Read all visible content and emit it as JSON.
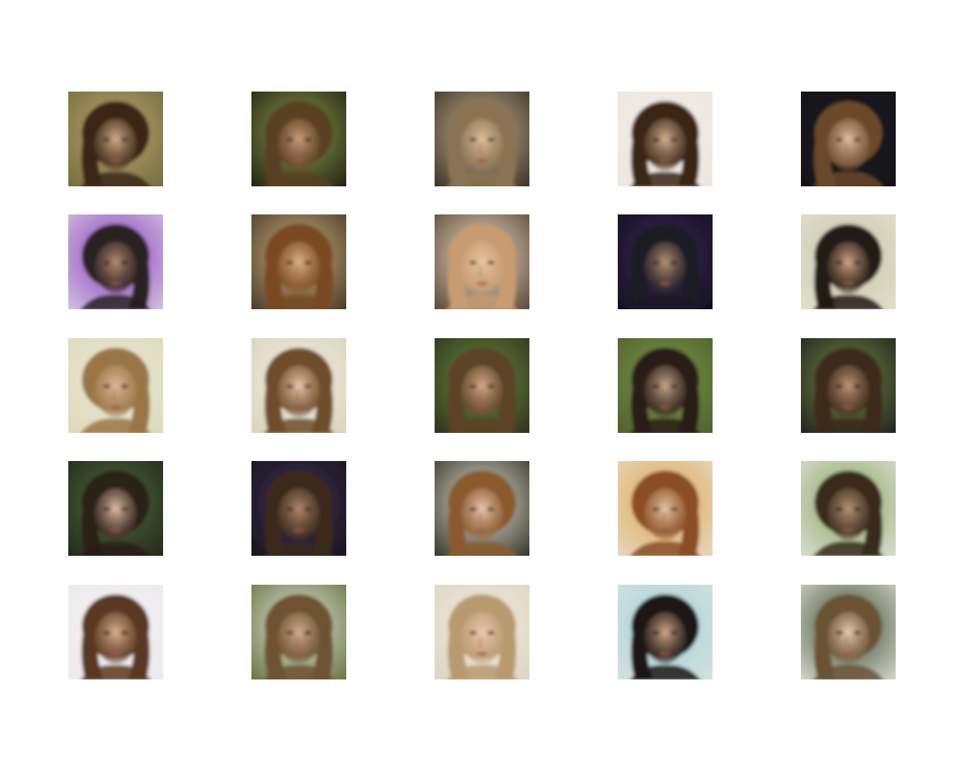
{
  "grid": {
    "rows": 5,
    "cols": 5,
    "tiles": [
      {
        "bg": "#6b6a3a",
        "hair": "#3a2818",
        "skin": "#d7b08a",
        "side": "left",
        "glow": "#c0a070"
      },
      {
        "bg": "#1a1410",
        "hair": "#5a3f22",
        "skin": "#caa07c",
        "side": "left",
        "glow": "#8ca04a"
      },
      {
        "bg": "#2b261e",
        "hair": "#8a7352",
        "skin": "#e2c29c",
        "side": "both",
        "glow": "#cdb38e"
      },
      {
        "bg": "#ece6df",
        "hair": "#3a2618",
        "skin": "#d8b594",
        "side": "both",
        "glow": "#f2ece6"
      },
      {
        "bg": "#141016",
        "hair": "#6a4a2c",
        "skin": "#e3bfa6",
        "side": "left",
        "glow": "#1c1822"
      },
      {
        "bg": "#d8d0e0",
        "hair": "#2a2024",
        "skin": "#b88e72",
        "side": "right",
        "glow": "#8a3cc0"
      },
      {
        "bg": "#3c3022",
        "hair": "#7a4a22",
        "skin": "#e0b48c",
        "side": "both",
        "glow": "#cfb07c"
      },
      {
        "bg": "#4a3a2a",
        "hair": "#c89c70",
        "skin": "#e8c4a2",
        "side": "both",
        "glow": "#f0dcc4"
      },
      {
        "bg": "#100c18",
        "hair": "#1e1a26",
        "skin": "#b89474",
        "side": "both",
        "glow": "#3a2a58"
      },
      {
        "bg": "#e4e0d2",
        "hair": "#241a14",
        "skin": "#d2a688",
        "side": "left",
        "glow": "#c8c8a8"
      },
      {
        "bg": "#dcd8b8",
        "hair": "#9a7646",
        "skin": "#dcb89a",
        "side": "right",
        "glow": "#eae8d6"
      },
      {
        "bg": "#d8d2b8",
        "hair": "#6e4e2c",
        "skin": "#ecc8ae",
        "side": "both",
        "glow": "#f0ece0"
      },
      {
        "bg": "#2a2a1c",
        "hair": "#5c4226",
        "skin": "#d8ae8a",
        "side": "both",
        "glow": "#6a8a3c"
      },
      {
        "bg": "#4a5a2c",
        "hair": "#2a1e16",
        "skin": "#caa88e",
        "side": "both",
        "glow": "#7a9a4a"
      },
      {
        "bg": "#1c1820",
        "hair": "#3c2a1c",
        "skin": "#c49878",
        "side": "both",
        "glow": "#6e8a3c"
      },
      {
        "bg": "#1e221a",
        "hair": "#2c2018",
        "skin": "#e4c0aa",
        "side": "left",
        "glow": "#506a3a"
      },
      {
        "bg": "#16121a",
        "hair": "#3a2a1e",
        "skin": "#b48a6c",
        "side": "both",
        "glow": "#3e2e52"
      },
      {
        "bg": "#222618",
        "hair": "#8a5a2e",
        "skin": "#ecc6b0",
        "side": "left",
        "glow": "#e8e0d4"
      },
      {
        "bg": "#e6dccc",
        "hair": "#8a4e26",
        "skin": "#e8c8a6",
        "side": "right",
        "glow": "#e0a650"
      },
      {
        "bg": "#e0e2dc",
        "hair": "#3a2a1c",
        "skin": "#b89878",
        "side": "right",
        "glow": "#8aa860"
      },
      {
        "bg": "#ece8ec",
        "hair": "#5a3820",
        "skin": "#dcb492",
        "side": "both",
        "glow": "#f4f0f4"
      },
      {
        "bg": "#5a6a32",
        "hair": "#6e5232",
        "skin": "#d4ae92",
        "side": "both",
        "glow": "#e8e6e0"
      },
      {
        "bg": "#dcd4c0",
        "hair": "#b89a70",
        "skin": "#ecc8ac",
        "side": "both",
        "glow": "#f0e8dc"
      },
      {
        "bg": "#d8e4e0",
        "hair": "#1c1614",
        "skin": "#d4aa8a",
        "side": "left",
        "glow": "#a8d0d8"
      },
      {
        "bg": "#e4e4dc",
        "hair": "#6a5236",
        "skin": "#ecccb4",
        "side": "left",
        "glow": "#3a4a2c"
      }
    ]
  }
}
